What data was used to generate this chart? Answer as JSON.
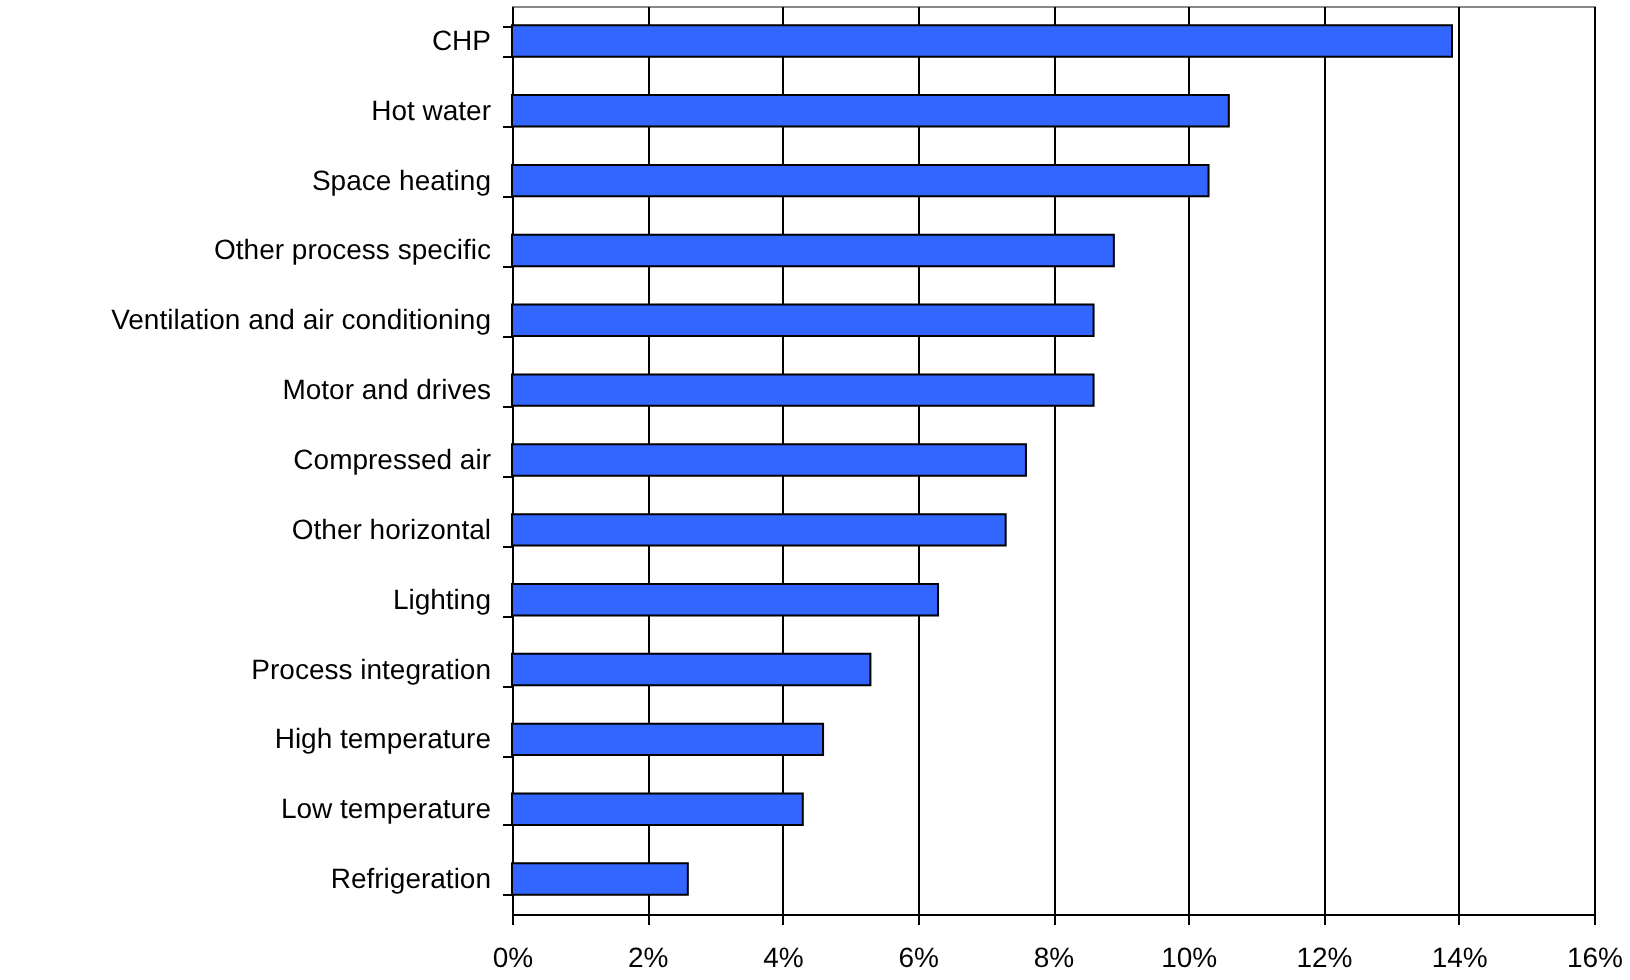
{
  "chart_data": {
    "type": "bar",
    "orientation": "horizontal",
    "categories": [
      "CHP",
      "Hot water",
      "Space heating",
      "Other process specific",
      "Ventilation and air conditioning",
      "Motor and drives",
      "Compressed air",
      "Other horizontal",
      "Lighting",
      "Process integration",
      "High temperature",
      "Low temperature",
      "Refrigeration"
    ],
    "values": [
      13.9,
      10.6,
      10.3,
      8.9,
      8.6,
      8.6,
      7.6,
      7.3,
      6.3,
      5.3,
      4.6,
      4.3,
      2.6
    ],
    "color": "#3366ff",
    "xlim": [
      0,
      16
    ],
    "xticks": [
      {
        "value": 0,
        "label": "0%"
      },
      {
        "value": 2,
        "label": "2%"
      },
      {
        "value": 4,
        "label": "4%"
      },
      {
        "value": 6,
        "label": "6%"
      },
      {
        "value": 8,
        "label": "8%"
      },
      {
        "value": 10,
        "label": "10%"
      },
      {
        "value": 12,
        "label": "12%"
      },
      {
        "value": 14,
        "label": "14%"
      },
      {
        "value": 16,
        "label": "16%"
      }
    ],
    "grid": "x"
  }
}
